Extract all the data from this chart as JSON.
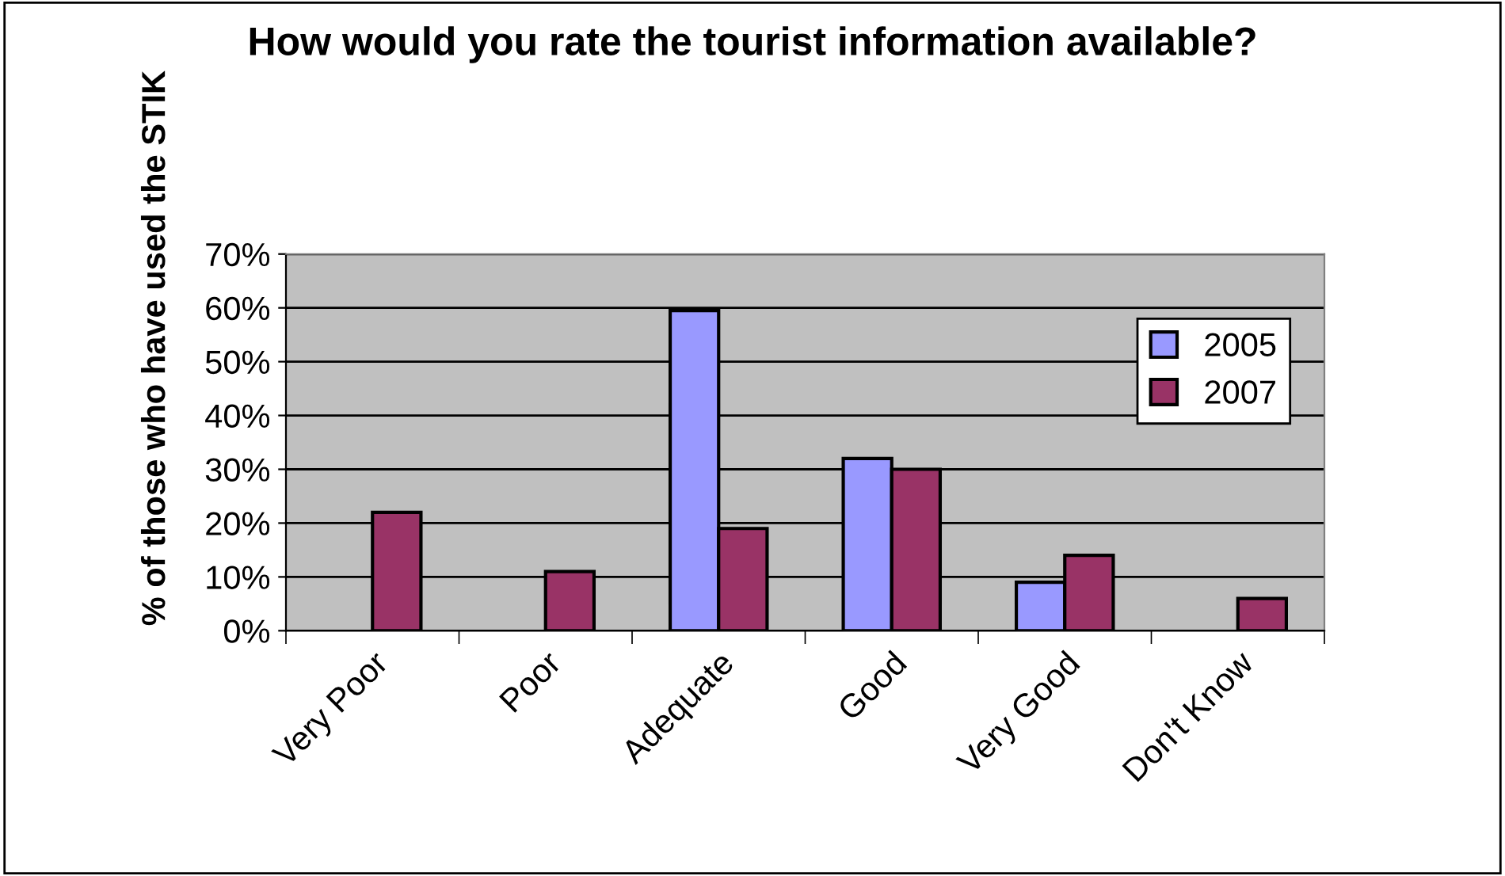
{
  "chart_data": {
    "type": "bar",
    "title": "How would you rate the tourist information available?",
    "ylabel": "% of those who have used the STIK",
    "categories": [
      "Very Poor",
      "Poor",
      "Adequate",
      "Good",
      "Very Good",
      "Don't Know"
    ],
    "series": [
      {
        "name": "2005",
        "color": "#9999ff",
        "values": [
          null,
          null,
          59.5,
          32,
          9,
          null
        ]
      },
      {
        "name": "2007",
        "color": "#993366",
        "values": [
          22,
          11,
          19,
          30,
          14,
          6
        ]
      }
    ],
    "ylim": [
      0,
      70
    ],
    "yticks": [
      {
        "value": 0,
        "label": "0%"
      },
      {
        "value": 10,
        "label": "10%"
      },
      {
        "value": 20,
        "label": "20%"
      },
      {
        "value": 30,
        "label": "30%"
      },
      {
        "value": 40,
        "label": "40%"
      },
      {
        "value": 50,
        "label": "50%"
      },
      {
        "value": 60,
        "label": "60%"
      },
      {
        "value": 70,
        "label": "70%"
      }
    ],
    "grid": "y",
    "legend": "top right"
  }
}
